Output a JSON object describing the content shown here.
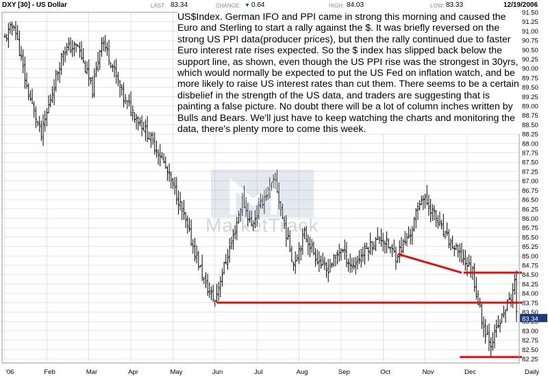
{
  "header": {
    "symbol": "DXY [30] - US Dollar",
    "last_label": "LAST:",
    "last_value": "83.34",
    "change_label": "CHANGE:",
    "change_value": "0.64",
    "high_label": "HIGH:",
    "high_value": "84.03",
    "low_label": "LOW:",
    "low_value": "83.33",
    "date": "12/19/2006"
  },
  "annotation_text": "US$Index. German IFO and PPI came in strong this morning and caused the Euro and Sterling to start a rally against the $. It was briefly reversed on the strong US PPI data(producer prices), but then the rally continued due to faster Euro interest rate rises expected. So the $ index has slipped back below the support line, as shown, even though the US PPI rise was the strongest in 30yrs, which would normally be expected to put the US Fed on inflation watch, and be more likely to raise US interest rates than cut them. There seems to be a certain disbelief in the strength of the US data, and traders are suggesting that is painting a false picture. No doubt there will be a lot of column inches written by Bulls and Bears. We'll just have to keep watching the charts and monitoring the data, there's plenty more to come this week.",
  "watermark": "MarketTrack",
  "colors": {
    "bars": "#000000",
    "trendlines": "#e01010",
    "grid": "#c8c8c8",
    "price_tag_bg": "#1c3a78"
  },
  "icons": {
    "change": "triangle-down-icon"
  },
  "chart_data": {
    "type": "ohlc",
    "title": "DXY [30] - US Dollar",
    "x_tick_labels": [
      "'06",
      "Feb",
      "Mar",
      "Apr",
      "May",
      "Jun",
      "Jul",
      "Aug",
      "Sep",
      "Oct",
      "Nov",
      "Dec",
      "Daily"
    ],
    "y_tick_labels": [
      "91.50",
      "91.25",
      "91.00",
      "90.75",
      "90.50",
      "90.25",
      "90.00",
      "89.75",
      "89.50",
      "89.25",
      "89.00",
      "88.75",
      "88.50",
      "88.25",
      "88.00",
      "87.75",
      "87.50",
      "87.25",
      "87.00",
      "86.75",
      "86.50",
      "86.25",
      "86.00",
      "85.75",
      "85.50",
      "85.25",
      "85.00",
      "84.75",
      "84.50",
      "84.25",
      "84.00",
      "83.75",
      "83.50",
      "83.25",
      "83.00",
      "82.75",
      "82.50",
      "82.25"
    ],
    "ylim": [
      82.25,
      91.5
    ],
    "y_axis_side": "right",
    "last_price_tag": "83.34",
    "grid": true,
    "close_path": [
      [
        0,
        90.8
      ],
      [
        5,
        91.2
      ],
      [
        12,
        89.5
      ],
      [
        20,
        88.2
      ],
      [
        25,
        89.2
      ],
      [
        32,
        90.5
      ],
      [
        40,
        90.6
      ],
      [
        48,
        89.4
      ],
      [
        53,
        90.8
      ],
      [
        58,
        90.2
      ],
      [
        65,
        89.2
      ],
      [
        75,
        88.5
      ],
      [
        85,
        87.7
      ],
      [
        95,
        86.5
      ],
      [
        104,
        85.1
      ],
      [
        110,
        84.2
      ],
      [
        115,
        83.8
      ],
      [
        118,
        84.4
      ],
      [
        125,
        85.5
      ],
      [
        130,
        86.5
      ],
      [
        135,
        85.8
      ],
      [
        142,
        86.6
      ],
      [
        148,
        87.0
      ],
      [
        152,
        86.0
      ],
      [
        158,
        84.8
      ],
      [
        164,
        85.6
      ],
      [
        170,
        85.0
      ],
      [
        176,
        84.6
      ],
      [
        184,
        85.2
      ],
      [
        190,
        84.7
      ],
      [
        198,
        85.2
      ],
      [
        206,
        85.5
      ],
      [
        214,
        85.0
      ],
      [
        222,
        85.6
      ],
      [
        228,
        86.6
      ],
      [
        234,
        86.2
      ],
      [
        240,
        85.6
      ],
      [
        246,
        85.2
      ],
      [
        251,
        84.9
      ],
      [
        256,
        84.6
      ],
      [
        258,
        84.0
      ],
      [
        262,
        83.1
      ],
      [
        266,
        82.7
      ],
      [
        270,
        83.1
      ],
      [
        274,
        83.6
      ],
      [
        277,
        83.9
      ],
      [
        279,
        84.3
      ],
      [
        280,
        83.4
      ]
    ],
    "trendlines": [
      {
        "from": [
          215,
          85.05
        ],
        "to": [
          250,
          84.55
        ]
      },
      {
        "from": [
          116,
          83.75
        ],
        "to": [
          283,
          83.75
        ]
      },
      {
        "from": [
          251,
          84.55
        ],
        "to": [
          283,
          84.55
        ]
      },
      {
        "from": [
          249,
          82.3
        ],
        "to": [
          283,
          82.3
        ]
      }
    ]
  }
}
